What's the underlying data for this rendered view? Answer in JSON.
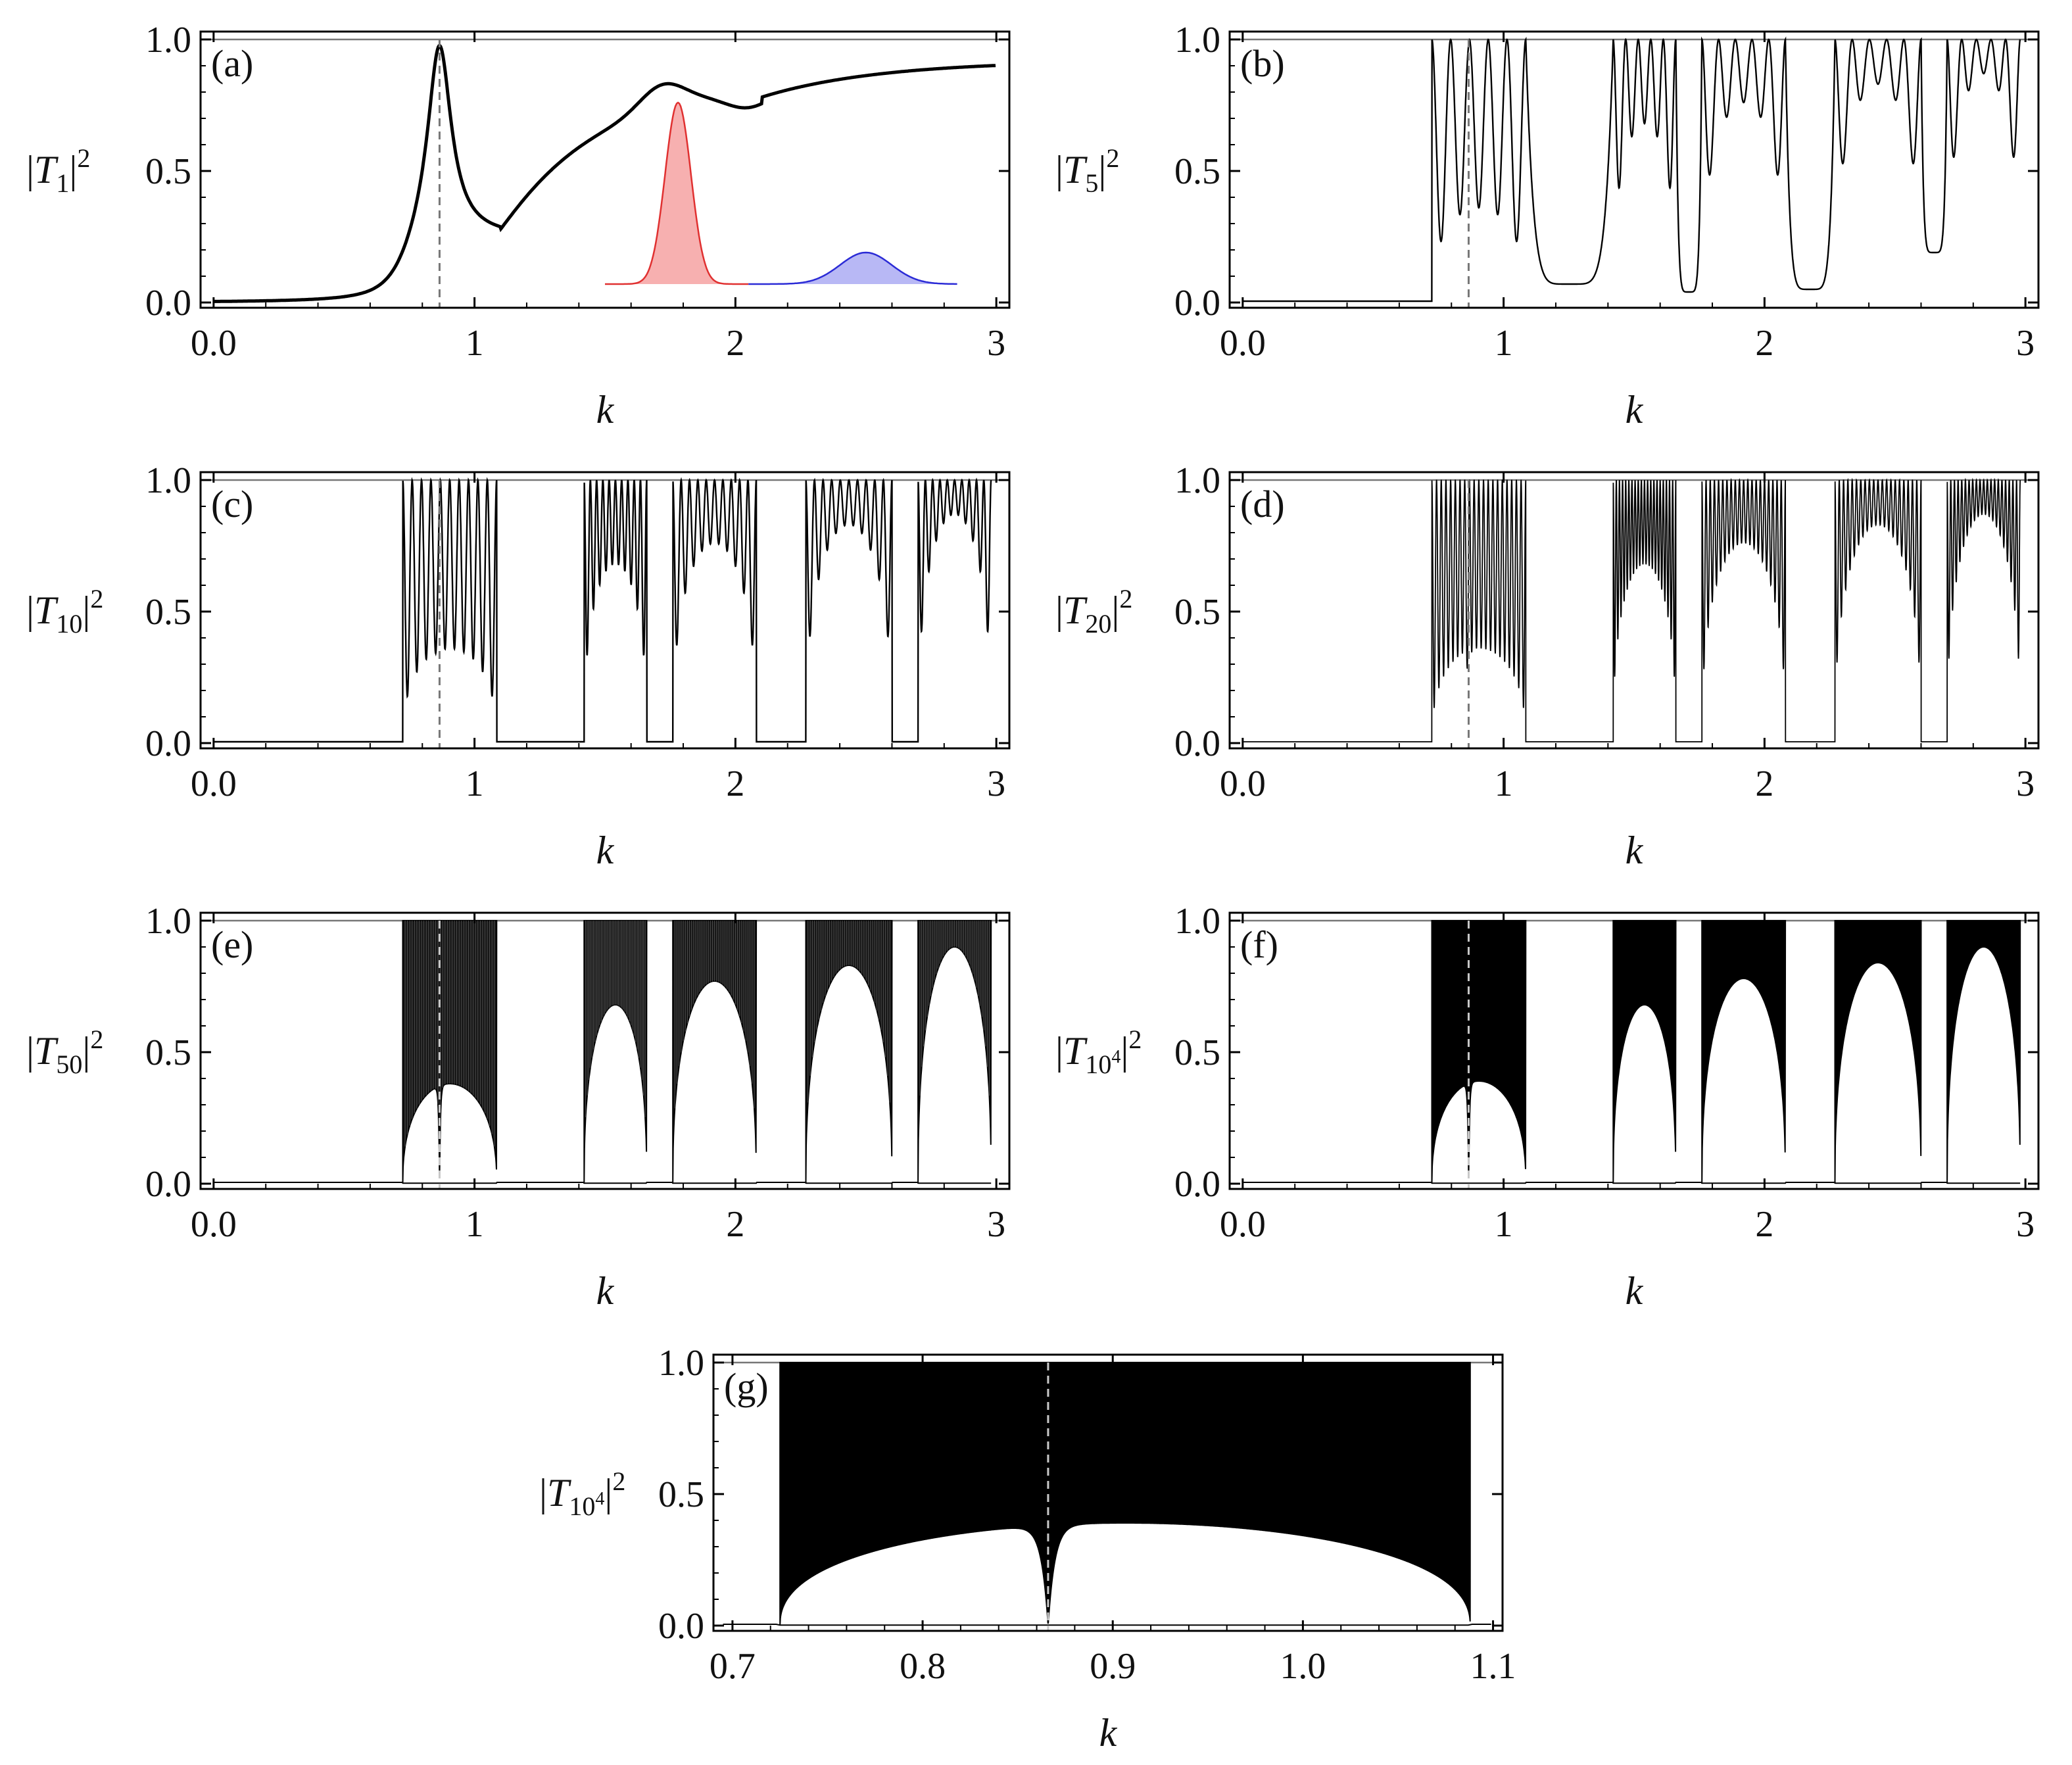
{
  "figure": {
    "reference_line_style": "dashed gray vertical line near k = 0.866"
  },
  "chart_data": [
    {
      "id": "a",
      "type": "line",
      "panel_label": "(a)",
      "ylabel": {
        "symbol": "T",
        "subscript": "1",
        "exponent": "2"
      },
      "xlabel": "k",
      "xlim": [
        -0.05,
        3.05
      ],
      "ylim": [
        -0.02,
        1.03
      ],
      "xticks": [
        0,
        1,
        2,
        3
      ],
      "xtick_labels": [
        "0.0",
        "1",
        "2",
        "3"
      ],
      "yticks": [
        0,
        0.5,
        1
      ],
      "ytick_labels": [
        "0.0",
        "0.5",
        "1.0"
      ],
      "k_max": 3.0,
      "dashed_k": 0.866,
      "model": "smooth-single-cell",
      "insets": [
        {
          "name": "red-wavepacket",
          "color": "#e03030",
          "fill": "#f7b0b0",
          "k_center": 1.78,
          "width": 0.07,
          "k_range": [
            1.5,
            2.05
          ],
          "base": 0.07,
          "peak": 0.76
        },
        {
          "name": "blue-wavepacket",
          "color": "#2b2bd6",
          "fill": "#b8b8f5",
          "k_center": 2.5,
          "width": 0.14,
          "k_range": [
            2.05,
            2.85
          ],
          "base": 0.07,
          "peak": 0.19
        }
      ]
    },
    {
      "id": "b",
      "type": "line",
      "panel_label": "(b)",
      "ylabel": {
        "symbol": "T",
        "subscript": "5",
        "exponent": "2"
      },
      "xlabel": "k",
      "xlim": [
        -0.05,
        3.05
      ],
      "ylim": [
        -0.02,
        1.03
      ],
      "xticks": [
        0,
        1,
        2,
        3
      ],
      "xtick_labels": [
        "0.0",
        "1",
        "2",
        "3"
      ],
      "yticks": [
        0,
        0.5,
        1
      ],
      "ytick_labels": [
        "0.0",
        "0.5",
        "1.0"
      ],
      "k_max": 2.98,
      "dashed_k": 0.866,
      "cells": 5,
      "passbands": [
        {
          "k": [
            0.725,
            1.085
          ],
          "trough": 0.36,
          "dip_at": 0.866
        },
        {
          "k": [
            1.42,
            1.66
          ],
          "trough": 0.68
        },
        {
          "k": [
            1.76,
            2.08
          ],
          "trough": 0.76
        },
        {
          "k": [
            2.27,
            2.6
          ],
          "trough": 0.83
        },
        {
          "k": [
            2.7,
            2.98
          ],
          "trough": 0.87
        }
      ],
      "gap_minima": [
        0.07,
        0.04,
        0.05,
        0.19
      ]
    },
    {
      "id": "c",
      "type": "line",
      "panel_label": "(c)",
      "ylabel": {
        "symbol": "T",
        "subscript": "10",
        "exponent": "2"
      },
      "xlabel": "k",
      "xlim": [
        -0.05,
        3.05
      ],
      "ylim": [
        -0.02,
        1.03
      ],
      "xticks": [
        0,
        1,
        2,
        3
      ],
      "xtick_labels": [
        "0.0",
        "1",
        "2",
        "3"
      ],
      "yticks": [
        0,
        0.5,
        1
      ],
      "ytick_labels": [
        "0.0",
        "0.5",
        "1.0"
      ],
      "k_max": 2.98,
      "dashed_k": 0.866,
      "cells": 10,
      "passbands": [
        {
          "k": [
            0.725,
            1.085
          ],
          "trough": 0.36,
          "dip_at": 0.866
        },
        {
          "k": [
            1.42,
            1.66
          ],
          "trough": 0.68
        },
        {
          "k": [
            1.76,
            2.08
          ],
          "trough": 0.76
        },
        {
          "k": [
            2.27,
            2.6
          ],
          "trough": 0.83
        },
        {
          "k": [
            2.7,
            2.98
          ],
          "trough": 0.87
        }
      ]
    },
    {
      "id": "d",
      "type": "line",
      "panel_label": "(d)",
      "ylabel": {
        "symbol": "T",
        "subscript": "20",
        "exponent": "2"
      },
      "xlabel": "k",
      "xlim": [
        -0.05,
        3.05
      ],
      "ylim": [
        -0.02,
        1.03
      ],
      "xticks": [
        0,
        1,
        2,
        3
      ],
      "xtick_labels": [
        "0.0",
        "1",
        "2",
        "3"
      ],
      "yticks": [
        0,
        0.5,
        1
      ],
      "ytick_labels": [
        "0.0",
        "0.5",
        "1.0"
      ],
      "k_max": 2.98,
      "dashed_k": 0.866,
      "cells": 20,
      "passbands": [
        {
          "k": [
            0.725,
            1.085
          ],
          "trough": 0.36,
          "dip_at": 0.866
        },
        {
          "k": [
            1.42,
            1.66
          ],
          "trough": 0.68
        },
        {
          "k": [
            1.76,
            2.08
          ],
          "trough": 0.76
        },
        {
          "k": [
            2.27,
            2.6
          ],
          "trough": 0.83
        },
        {
          "k": [
            2.7,
            2.98
          ],
          "trough": 0.87
        }
      ]
    },
    {
      "id": "e",
      "type": "area",
      "panel_label": "(e)",
      "ylabel": {
        "symbol": "T",
        "subscript": "50",
        "exponent": "2"
      },
      "xlabel": "k",
      "xlim": [
        -0.05,
        3.05
      ],
      "ylim": [
        -0.02,
        1.03
      ],
      "xticks": [
        0,
        1,
        2,
        3
      ],
      "xtick_labels": [
        "0.0",
        "1",
        "2",
        "3"
      ],
      "yticks": [
        0,
        0.5,
        1
      ],
      "ytick_labels": [
        "0.0",
        "0.5",
        "1.0"
      ],
      "k_max": 2.98,
      "dashed_k": 0.866,
      "cells": 50,
      "passbands": [
        {
          "k": [
            0.725,
            1.085
          ],
          "trough": 0.38,
          "dip_at": 0.866
        },
        {
          "k": [
            1.42,
            1.66
          ],
          "trough": 0.68
        },
        {
          "k": [
            1.76,
            2.08
          ],
          "trough": 0.77
        },
        {
          "k": [
            2.27,
            2.6
          ],
          "trough": 0.83
        },
        {
          "k": [
            2.7,
            2.98
          ],
          "trough": 0.9
        }
      ]
    },
    {
      "id": "f",
      "type": "area",
      "panel_label": "(f)",
      "ylabel": {
        "symbol": "T",
        "subscript": "10",
        "exponent": "2",
        "subscript_exponent": "4"
      },
      "xlabel": "k",
      "xlim": [
        -0.05,
        3.05
      ],
      "ylim": [
        -0.02,
        1.03
      ],
      "xticks": [
        0,
        1,
        2,
        3
      ],
      "xtick_labels": [
        "0.0",
        "1",
        "2",
        "3"
      ],
      "yticks": [
        0,
        0.5,
        1
      ],
      "ytick_labels": [
        "0.0",
        "0.5",
        "1.0"
      ],
      "k_max": 2.98,
      "dashed_k": 0.866,
      "cells": 10000,
      "passbands": [
        {
          "k": [
            0.725,
            1.085
          ],
          "trough": 0.39,
          "dip_at": 0.866
        },
        {
          "k": [
            1.42,
            1.66
          ],
          "trough": 0.68
        },
        {
          "k": [
            1.76,
            2.08
          ],
          "trough": 0.78
        },
        {
          "k": [
            2.27,
            2.6
          ],
          "trough": 0.84
        },
        {
          "k": [
            2.7,
            2.98
          ],
          "trough": 0.9
        }
      ]
    },
    {
      "id": "g",
      "type": "area",
      "panel_label": "(g)",
      "ylabel": {
        "symbol": "T",
        "subscript": "10",
        "exponent": "2",
        "subscript_exponent": "4"
      },
      "xlabel": "k",
      "xlim": [
        0.69,
        1.105
      ],
      "ylim": [
        -0.02,
        1.03
      ],
      "xticks": [
        0.7,
        0.8,
        0.9,
        1.0,
        1.1
      ],
      "xtick_labels": [
        "0.7",
        "0.8",
        "0.9",
        "1.0",
        "1.1"
      ],
      "yticks": [
        0,
        0.5,
        1
      ],
      "ytick_labels": [
        "0.0",
        "0.5",
        "1.0"
      ],
      "k_max": 1.1,
      "dashed_k": 0.866,
      "cells": 10000,
      "passbands": [
        {
          "k": [
            0.725,
            1.088
          ],
          "trough": 0.39,
          "dip_at": 0.866
        }
      ]
    }
  ]
}
